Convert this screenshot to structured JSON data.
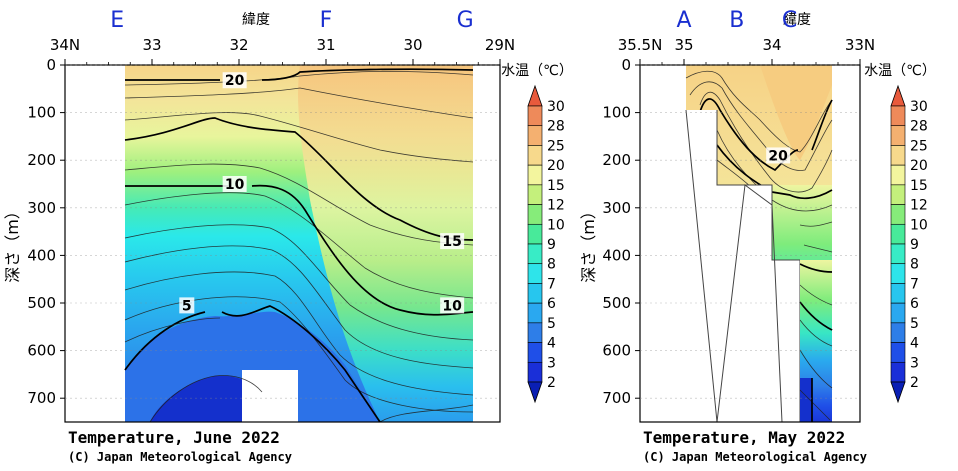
{
  "colors": {
    "d0_2": "#0a1fb4",
    "d2_3": "#1a2fd8",
    "d3_4": "#1f4fe8",
    "d4_5": "#2e7ee8",
    "d5_6": "#2aa8f0",
    "d6_7": "#27c6ee",
    "d7_8": "#2ee4ea",
    "d8_9": "#38ecc6",
    "d9_10": "#48ea9a",
    "d10_12": "#86ec7a",
    "d12_15": "#c4f07c",
    "d15_20": "#f3f59e",
    "d20_25": "#f7d98c",
    "d25_28": "#f4b070",
    "d28_30": "#ee8a5a",
    "d30": "#e85a3c",
    "section_letter": "#1a2fd0"
  },
  "chart_data": [
    {
      "type": "heatmap",
      "title": "Temperature, June 2022",
      "copyright": "(C) Japan Meteorological Agency",
      "xlabel": "緯度",
      "ylabel": "深さ（m）",
      "x_ticks": [
        "34N",
        "33",
        "32",
        "31",
        "30",
        "29N"
      ],
      "x_values": [
        34,
        33,
        32,
        31,
        30,
        29
      ],
      "xlim": [
        34,
        29
      ],
      "y_ticks": [
        "0",
        "100",
        "200",
        "300",
        "400",
        "500",
        "600",
        "700"
      ],
      "ylim": [
        0,
        750
      ],
      "section_points": [
        {
          "label": "E",
          "lat": 33.4
        },
        {
          "label": "F",
          "lat": 31.0
        },
        {
          "label": "G",
          "lat": 29.4
        }
      ],
      "contour_labels": [
        {
          "text": "20",
          "lat": 32.05,
          "depth": 32
        },
        {
          "text": "10",
          "lat": 32.05,
          "depth": 250
        },
        {
          "text": "15",
          "lat": 29.55,
          "depth": 370
        },
        {
          "text": "10",
          "lat": 29.55,
          "depth": 505
        },
        {
          "text": "5",
          "lat": 32.6,
          "depth": 505
        }
      ],
      "grid": false
    },
    {
      "type": "heatmap",
      "title": "Temperature, May 2022",
      "copyright": "(C) Japan Meteorological Agency",
      "xlabel": "緯度",
      "ylabel": "深さ（m）",
      "x_ticks": [
        "35.5N",
        "35",
        "34",
        "33N"
      ],
      "x_values": [
        35.5,
        35,
        34,
        33
      ],
      "xlim": [
        35.5,
        33
      ],
      "y_ticks": [
        "0",
        "100",
        "200",
        "300",
        "400",
        "500",
        "600",
        "700"
      ],
      "ylim": [
        0,
        750
      ],
      "section_points": [
        {
          "label": "A",
          "lat": 35.0
        },
        {
          "label": "B",
          "lat": 34.4
        },
        {
          "label": "C",
          "lat": 33.8
        }
      ],
      "contour_labels": [
        {
          "text": "20",
          "lat": 33.93,
          "depth": 190
        }
      ],
      "grid": false
    }
  ],
  "colorbar": {
    "title": "水温（℃）",
    "levels": [
      "30",
      "28",
      "25",
      "20",
      "15",
      "12",
      "10",
      "9",
      "8",
      "7",
      "6",
      "5",
      "4",
      "3",
      "2"
    ]
  }
}
